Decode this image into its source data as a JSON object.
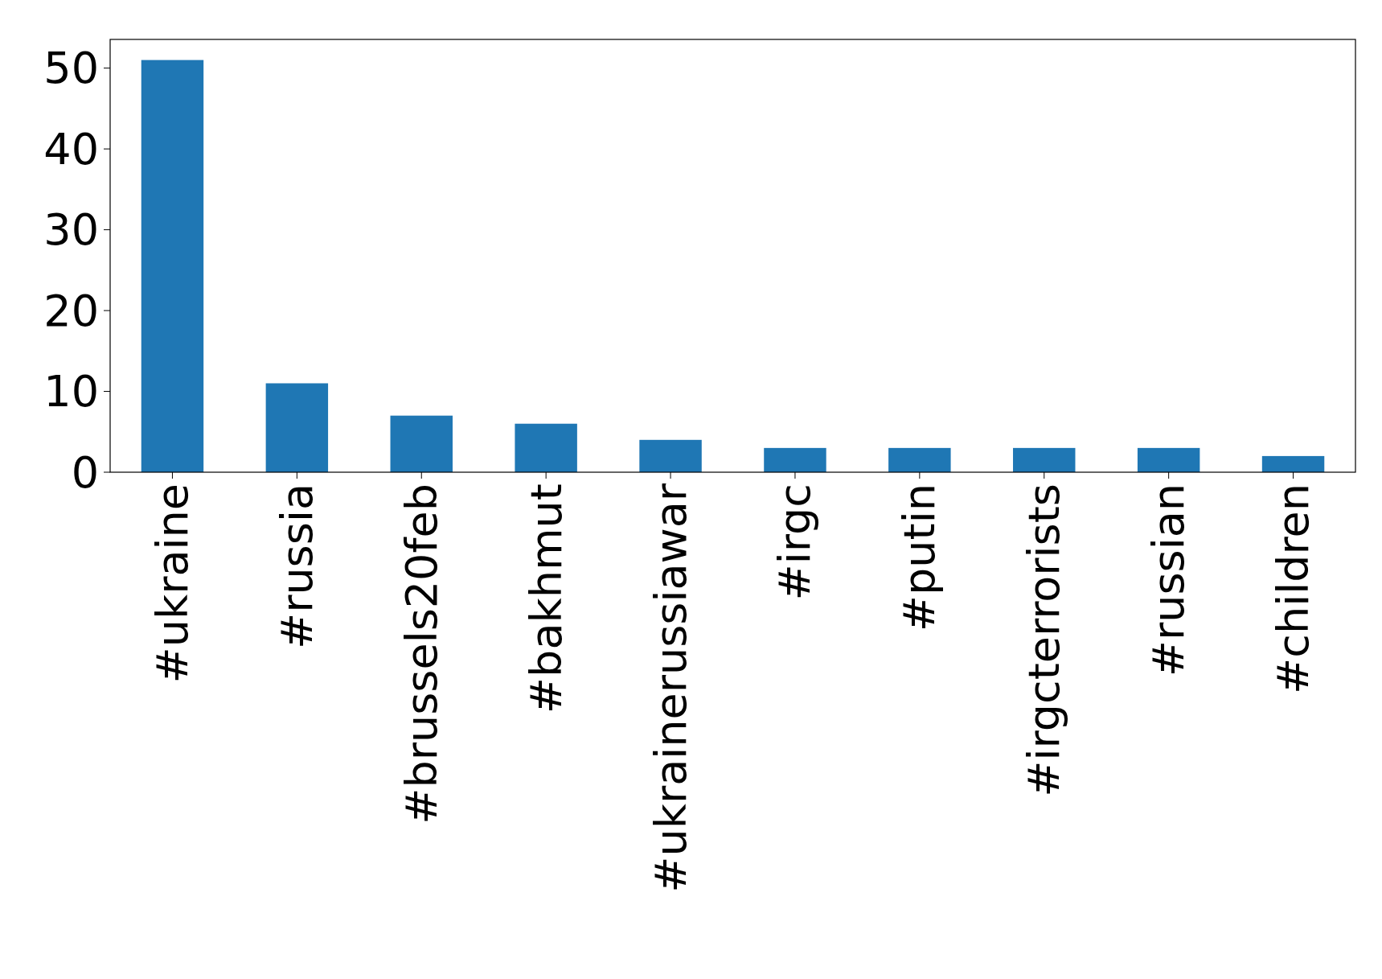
{
  "chart_data": {
    "type": "bar",
    "categories": [
      "#ukraine",
      "#russia",
      "#brussels20feb",
      "#bakhmut",
      "#ukrainerussiawar",
      "#irgc",
      "#putin",
      "#irgcterrorists",
      "#russian",
      "#children"
    ],
    "values": [
      51,
      11,
      7,
      6,
      4,
      3,
      3,
      3,
      3,
      2
    ],
    "color": "#1f77b4",
    "ylim": [
      0,
      53.55
    ],
    "yticks": [
      0,
      10,
      20,
      30,
      40,
      50
    ],
    "grid": false
  }
}
